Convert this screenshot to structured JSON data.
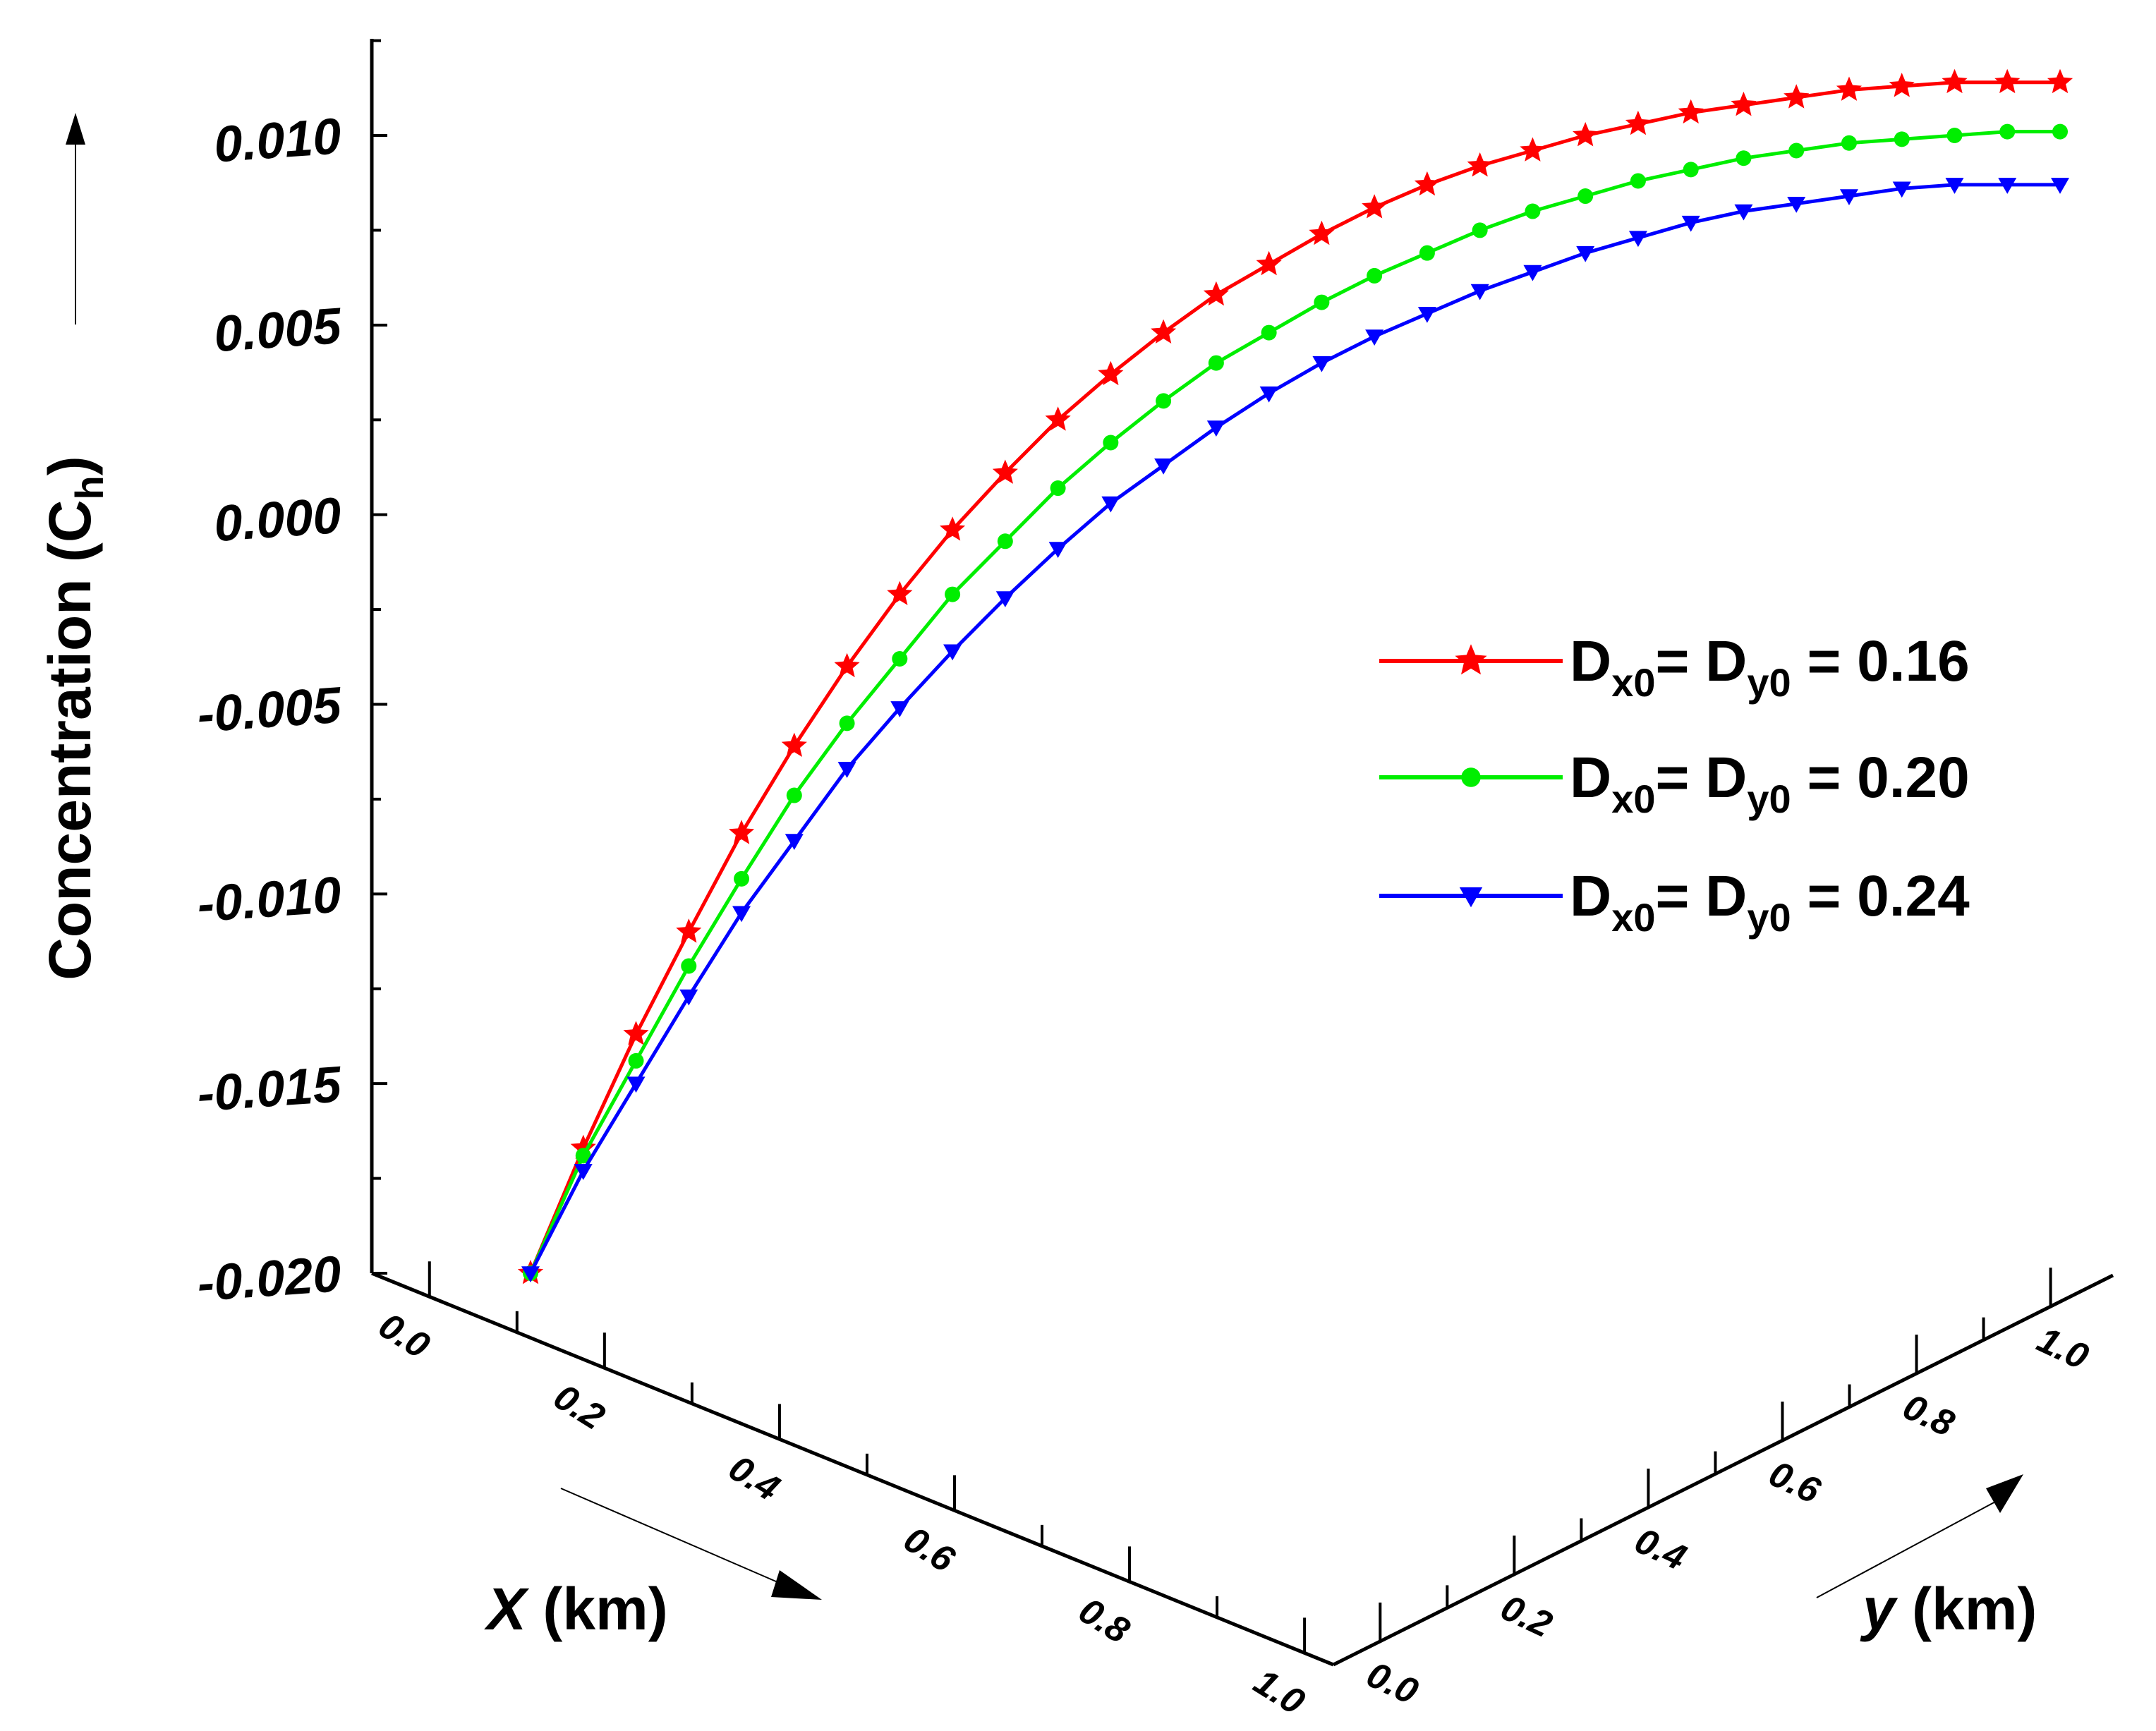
{
  "chart_data": {
    "type": "line",
    "title": "",
    "zlabel": "Concentration (C",
    "zlabel_sub": "h",
    "zlabel_close": ")",
    "xlabel_var": "X",
    "xlabel_unit": " (km)",
    "ylabel_var": "y",
    "ylabel_unit": " (km)",
    "zlim": [
      -0.02,
      0.012
    ],
    "zticks": [
      "-0.020",
      "-0.015",
      "-0.010",
      "-0.005",
      "0.000",
      "0.005",
      "0.010"
    ],
    "zticks_values": [
      -0.02,
      -0.015,
      -0.01,
      -0.005,
      0.0,
      0.005,
      0.01
    ],
    "xticks": [
      "0.0",
      "0.2",
      "0.4",
      "0.6",
      "0.8",
      "1.0"
    ],
    "xticks_values": [
      0.0,
      0.2,
      0.4,
      0.6,
      0.8,
      1.0
    ],
    "yticks": [
      "0.0",
      "0.2",
      "0.4",
      "0.6",
      "0.8",
      "1.0"
    ],
    "yticks_values": [
      0.0,
      0.2,
      0.4,
      0.6,
      0.8,
      1.0
    ],
    "grid": false,
    "legend_position": "right",
    "series": [
      {
        "legend": {
          "d1": "D",
          "s1": "x0",
          "mid": "= D",
          "s2": "y0",
          "tail": " = 0.16"
        },
        "color": "#ff0000",
        "marker": "star",
        "values": [
          -0.02,
          -0.0167,
          -0.0137,
          -0.011,
          -0.0084,
          -0.0061,
          -0.004,
          -0.0021,
          -0.0004,
          0.0011,
          0.0025,
          0.0037,
          0.0048,
          0.0058,
          0.0066,
          0.0074,
          0.0081,
          0.0087,
          0.0092,
          0.0096,
          0.01,
          0.0103,
          0.0106,
          0.0108,
          0.011,
          0.0112,
          0.0113,
          0.0114,
          0.0114,
          0.0114
        ]
      },
      {
        "legend": {
          "d1": "D",
          "s1": "x0",
          "mid": "= D",
          "s2": "y0",
          "tail": " = 0.20"
        },
        "color": "#00ee00",
        "marker": "circle",
        "values": [
          -0.02,
          -0.0169,
          -0.0144,
          -0.0119,
          -0.0096,
          -0.0074,
          -0.0055,
          -0.0038,
          -0.0021,
          -0.0007,
          0.0007,
          0.0019,
          0.003,
          0.004,
          0.0048,
          0.0056,
          0.0063,
          0.0069,
          0.0075,
          0.008,
          0.0084,
          0.0088,
          0.0091,
          0.0094,
          0.0096,
          0.0098,
          0.0099,
          0.01,
          0.0101,
          0.0101
        ]
      },
      {
        "legend": {
          "d1": "D",
          "s1": "x0",
          "mid": "= D",
          "s2": "y0",
          "tail": " = 0.24"
        },
        "color": "#0000ff",
        "marker": "triangle-down",
        "values": [
          -0.02,
          -0.0173,
          -0.015,
          -0.0127,
          -0.0105,
          -0.0086,
          -0.0067,
          -0.0051,
          -0.0036,
          -0.0022,
          -0.0009,
          0.0003,
          0.0013,
          0.0023,
          0.0032,
          0.004,
          0.0047,
          0.0053,
          0.0059,
          0.0064,
          0.0069,
          0.0073,
          0.0077,
          0.008,
          0.0082,
          0.0084,
          0.0086,
          0.0087,
          0.0087,
          0.0087
        ]
      }
    ]
  }
}
